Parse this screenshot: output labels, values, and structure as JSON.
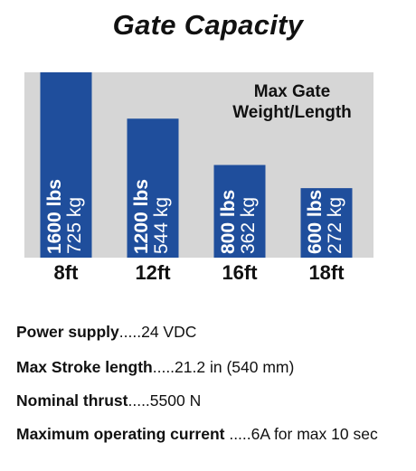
{
  "title": "Gate Capacity",
  "chart_data": {
    "type": "bar",
    "title": "Gate Capacity",
    "annotation": [
      "Max Gate",
      "Weight/Length"
    ],
    "categories": [
      "8ft",
      "12ft",
      "16ft",
      "18ft"
    ],
    "series": [
      {
        "values": [
          1600,
          1200,
          800,
          600
        ],
        "unit": "lbs"
      },
      {
        "values": [
          725,
          544,
          362,
          272
        ],
        "unit": "kg"
      }
    ],
    "bar_labels": [
      {
        "primary": "1600 lbs",
        "secondary": "725 kg"
      },
      {
        "primary": "1200 lbs",
        "secondary": "544 kg"
      },
      {
        "primary": "800 lbs",
        "secondary": "362 kg"
      },
      {
        "primary": "600 lbs",
        "secondary": "272 kg"
      }
    ],
    "ylim": [
      0,
      1600
    ],
    "grid": false,
    "colors": {
      "bar": "#1f4e9c",
      "panel": "#d6d6d6",
      "bar_text": "#ffffff"
    }
  },
  "specs": [
    {
      "label": "Power supply",
      "value": ".....24 VDC"
    },
    {
      "label": "Max Stroke length",
      "value": ".....21.2 in (540 mm)"
    },
    {
      "label": "Nominal thrust",
      "value": ".....5500 N"
    },
    {
      "label": "Maximum operating current",
      "value": " .....6A for max 10 sec"
    }
  ]
}
